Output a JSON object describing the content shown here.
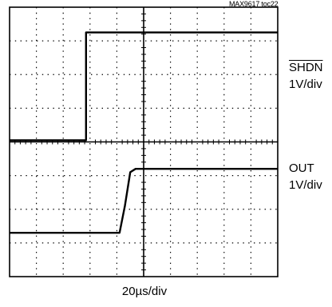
{
  "chart_data": {
    "type": "line",
    "title": "",
    "figure_ref": "MAX9617 toc22",
    "x_divisions": 10,
    "y_divisions": 8,
    "xlabel": "20µs/div",
    "grid": true,
    "series": [
      {
        "name": "SHDN",
        "name_overline": true,
        "scale": "1V/div",
        "level_div": [
          {
            "x_div": 0.0,
            "y_div": 4.05
          },
          {
            "x_div": 2.85,
            "y_div": 4.05
          },
          {
            "x_div": 2.85,
            "y_div": 7.25
          },
          {
            "x_div": 10.0,
            "y_div": 7.25
          }
        ]
      },
      {
        "name": "OUT",
        "name_overline": false,
        "scale": "1V/div",
        "level_div": [
          {
            "x_div": 0.0,
            "y_div": 1.3
          },
          {
            "x_div": 4.1,
            "y_div": 1.3
          },
          {
            "x_div": 4.3,
            "y_div": 2.1
          },
          {
            "x_div": 4.5,
            "y_div": 3.1
          },
          {
            "x_div": 4.7,
            "y_div": 3.2
          },
          {
            "x_div": 10.0,
            "y_div": 3.2
          }
        ]
      }
    ]
  }
}
